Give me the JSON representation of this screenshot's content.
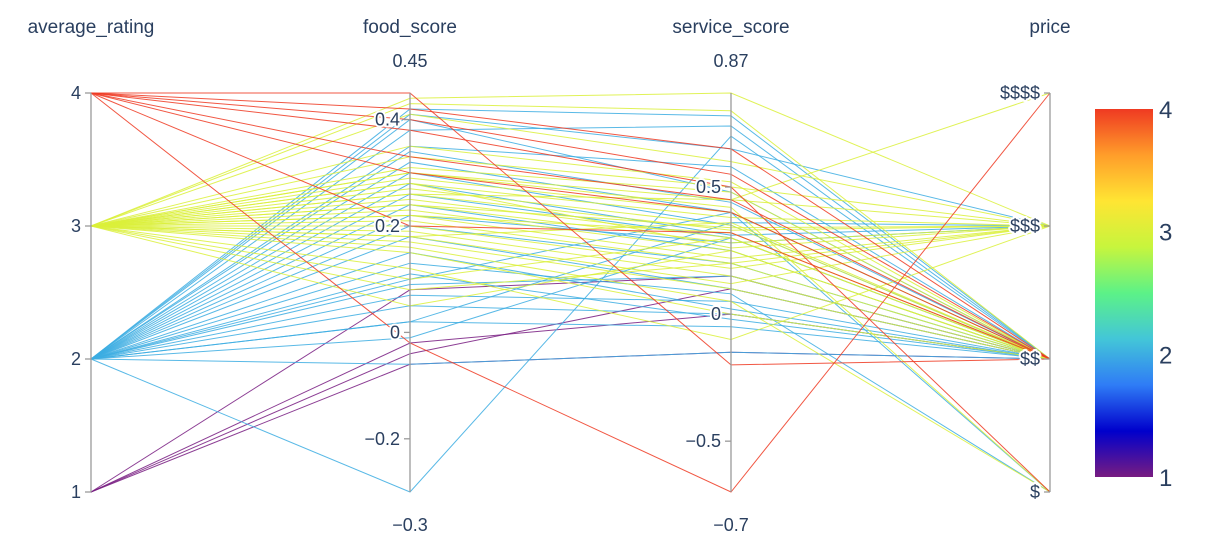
{
  "chart_data": {
    "type": "parallel_coordinates",
    "color_dimension": "average_rating",
    "colorscale": [
      "#781c81",
      "#0000cc",
      "#2f7cf6",
      "#43c6d8",
      "#5cf287",
      "#c7f53d",
      "#ffe533",
      "#ff9d2a",
      "#ef3a22"
    ],
    "colorbar": {
      "range": [
        1,
        4
      ],
      "ticks": [
        "1",
        "2",
        "3",
        "4"
      ]
    },
    "dimensions": [
      {
        "label": "average_rating",
        "range": [
          1,
          4
        ],
        "range_labels": [
          "",
          ""
        ],
        "ticks": [
          {
            "value": 1,
            "text": "1"
          },
          {
            "value": 2,
            "text": "2"
          },
          {
            "value": 3,
            "text": "3"
          },
          {
            "value": 4,
            "text": "4"
          }
        ]
      },
      {
        "label": "food_score",
        "range": [
          -0.3,
          0.45
        ],
        "range_labels": [
          "−0.3",
          "0.45"
        ],
        "ticks": [
          {
            "value": -0.2,
            "text": "−0.2"
          },
          {
            "value": 0,
            "text": "0"
          },
          {
            "value": 0.2,
            "text": "0.2"
          },
          {
            "value": 0.4,
            "text": "0.4"
          }
        ]
      },
      {
        "label": "service_score",
        "range": [
          -0.7,
          0.87
        ],
        "range_labels": [
          "−0.7",
          "0.87"
        ],
        "ticks": [
          {
            "value": -0.5,
            "text": "−0.5"
          },
          {
            "value": 0,
            "text": "0"
          },
          {
            "value": 0.5,
            "text": "0.5"
          }
        ]
      },
      {
        "label": "price",
        "range": [
          1,
          4
        ],
        "range_labels": [
          "",
          ""
        ],
        "ticks": [
          {
            "value": 1,
            "text": "$"
          },
          {
            "value": 2,
            "text": "$$"
          },
          {
            "value": 3,
            "text": "$$$"
          },
          {
            "value": 4,
            "text": "$$$$"
          }
        ]
      }
    ],
    "rows": [
      [
        4,
        0.45,
        -0.2,
        2
      ],
      [
        4,
        0.42,
        0.65,
        2
      ],
      [
        4,
        0.4,
        0.55,
        2
      ],
      [
        4,
        0.33,
        0.45,
        2
      ],
      [
        4,
        0.2,
        0.32,
        2
      ],
      [
        4,
        0.38,
        0.5,
        1
      ],
      [
        4,
        -0.02,
        -0.7,
        4
      ],
      [
        4,
        0.3,
        0.4,
        2
      ],
      [
        3,
        0.44,
        0.87,
        3
      ],
      [
        3,
        0.43,
        0.8,
        2
      ],
      [
        3,
        0.41,
        0.6,
        3
      ],
      [
        3,
        0.35,
        0.52,
        2
      ],
      [
        3,
        0.33,
        0.5,
        3
      ],
      [
        3,
        0.31,
        0.48,
        2
      ],
      [
        3,
        0.3,
        0.45,
        3
      ],
      [
        3,
        0.29,
        0.4,
        2
      ],
      [
        3,
        0.28,
        0.38,
        3
      ],
      [
        3,
        0.27,
        0.35,
        2
      ],
      [
        3,
        0.26,
        0.33,
        3
      ],
      [
        3,
        0.25,
        0.3,
        2
      ],
      [
        3,
        0.24,
        0.28,
        3
      ],
      [
        3,
        0.23,
        0.25,
        2
      ],
      [
        3,
        0.22,
        0.22,
        3
      ],
      [
        3,
        0.21,
        0.2,
        2
      ],
      [
        3,
        0.2,
        0.18,
        3
      ],
      [
        3,
        0.19,
        0.15,
        2
      ],
      [
        3,
        0.18,
        0.12,
        3
      ],
      [
        3,
        0.17,
        0.1,
        2
      ],
      [
        3,
        0.16,
        0.05,
        1
      ],
      [
        3,
        0.15,
        0.0,
        2
      ],
      [
        3,
        0.12,
        -0.1,
        3
      ],
      [
        3,
        0.1,
        0.3,
        2
      ],
      [
        3,
        0.08,
        0.2,
        3
      ],
      [
        3,
        0.05,
        0.25,
        2
      ],
      [
        3,
        0.3,
        0.42,
        1
      ],
      [
        3,
        0.26,
        0.45,
        4
      ],
      [
        3,
        0.24,
        0.34,
        3
      ],
      [
        3,
        0.22,
        0.32,
        2
      ],
      [
        3,
        0.28,
        0.26,
        3
      ],
      [
        3,
        0.18,
        0.36,
        2
      ],
      [
        2,
        0.42,
        0.78,
        2
      ],
      [
        2,
        0.41,
        0.65,
        3
      ],
      [
        2,
        0.38,
        0.74,
        2
      ],
      [
        2,
        0.35,
        0.58,
        2
      ],
      [
        2,
        0.32,
        0.4,
        1
      ],
      [
        2,
        0.3,
        0.35,
        2
      ],
      [
        2,
        0.28,
        0.31,
        3
      ],
      [
        2,
        0.26,
        0.3,
        2
      ],
      [
        2,
        0.24,
        0.25,
        2
      ],
      [
        2,
        0.22,
        0.28,
        3
      ],
      [
        2,
        0.2,
        0.2,
        2
      ],
      [
        2,
        0.18,
        0.1,
        2
      ],
      [
        2,
        0.15,
        0.02,
        2
      ],
      [
        2,
        0.13,
        0.08,
        1
      ],
      [
        2,
        0.11,
        -0.02,
        2
      ],
      [
        2,
        0.09,
        0.15,
        2
      ],
      [
        2,
        0.07,
        0.05,
        2
      ],
      [
        2,
        0.05,
        0.0,
        2
      ],
      [
        2,
        0.02,
        -0.05,
        2
      ],
      [
        2,
        -0.01,
        0.3,
        2
      ],
      [
        2,
        -0.06,
        -0.15,
        2
      ],
      [
        2,
        -0.3,
        0.7,
        2
      ],
      [
        2,
        0.02,
        0.36,
        3
      ],
      [
        2,
        0.34,
        0.44,
        2
      ],
      [
        2,
        0.4,
        0.48,
        2
      ],
      [
        2,
        0.1,
        0.4,
        2
      ],
      [
        1,
        -0.02,
        0.0,
        2
      ],
      [
        1,
        -0.06,
        -0.15,
        2
      ],
      [
        1,
        0.08,
        0.15,
        2
      ],
      [
        1,
        -0.04,
        0.1,
        2
      ]
    ]
  }
}
